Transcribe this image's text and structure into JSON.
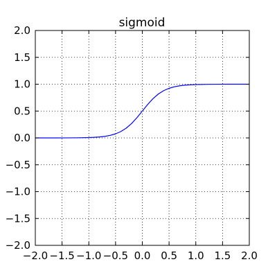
{
  "chart_data": {
    "type": "line",
    "title": "sigmoid",
    "xlabel": "",
    "ylabel": "",
    "xlim": [
      -2.0,
      2.0
    ],
    "ylim": [
      -2.0,
      2.0
    ],
    "grid": true,
    "xticks": [
      -2.0,
      -1.5,
      -1.0,
      -0.5,
      0.0,
      0.5,
      1.0,
      1.5,
      2.0
    ],
    "yticks": [
      -2.0,
      -1.5,
      -1.0,
      -0.5,
      0.0,
      0.5,
      1.0,
      1.5,
      2.0
    ],
    "xtick_labels": [
      "−2.0",
      "−1.5",
      "−1.0",
      "−0.5",
      "0.0",
      "0.5",
      "1.0",
      "1.5",
      "2.0"
    ],
    "ytick_labels": [
      "−2.0",
      "−1.5",
      "−1.0",
      "−0.5",
      "0.0",
      "0.5",
      "1.0",
      "1.5",
      "2.0"
    ],
    "series": [
      {
        "color": "#0000ff",
        "x": [
          -2.0,
          -1.8,
          -1.6,
          -1.4,
          -1.2,
          -1.0,
          -0.9,
          -0.8,
          -0.7,
          -0.6,
          -0.5,
          -0.4,
          -0.3,
          -0.2,
          -0.1,
          0.0,
          0.1,
          0.2,
          0.3,
          0.4,
          0.5,
          0.6,
          0.7,
          0.8,
          0.9,
          1.0,
          1.2,
          1.4,
          1.6,
          1.8,
          2.0
        ],
        "y": [
          0.0,
          0.0001,
          0.0002,
          0.0008,
          0.0025,
          0.0067,
          0.011,
          0.018,
          0.0293,
          0.0474,
          0.0759,
          0.1192,
          0.1824,
          0.2689,
          0.3775,
          0.5,
          0.6225,
          0.7311,
          0.8176,
          0.8808,
          0.9241,
          0.9526,
          0.9707,
          0.982,
          0.989,
          0.9933,
          0.9975,
          0.9992,
          0.9998,
          0.9999,
          1.0
        ]
      }
    ]
  }
}
